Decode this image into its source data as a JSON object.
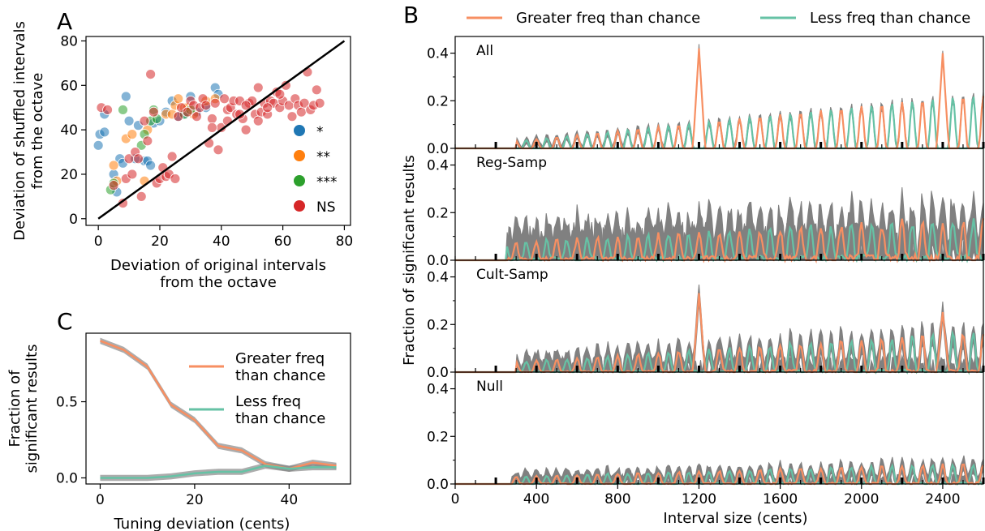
{
  "panels": {
    "A": {
      "letter": "A"
    },
    "B": {
      "letter": "B"
    },
    "C": {
      "letter": "C"
    }
  },
  "colors": {
    "greater": "#f78f62",
    "less": "#66c2a5",
    "band": "#808080",
    "star1": "#1f77b4",
    "star2": "#ff7f0e",
    "star3": "#2ca02c",
    "ns": "#d62728"
  },
  "chart_data": [
    {
      "id": "A",
      "type": "scatter",
      "xlabel_lines": [
        "Deviation of original intervals",
        "from the octave"
      ],
      "ylabel_lines": [
        "Deviation of shuffled intervals",
        "from the octave"
      ],
      "xlim": [
        -4,
        82
      ],
      "ylim": [
        -3,
        82
      ],
      "xticks": [
        0,
        20,
        40,
        60,
        80
      ],
      "yticks": [
        0,
        20,
        40,
        60,
        80
      ],
      "line": [
        [
          0,
          0
        ],
        [
          80,
          80
        ]
      ],
      "legend": [
        {
          "label": "*",
          "color_key": "star1"
        },
        {
          "label": "**",
          "color_key": "star2"
        },
        {
          "label": "***",
          "color_key": "star3"
        },
        {
          "label": "NS",
          "color_key": "ns"
        }
      ],
      "points": {
        "star1": [
          [
            0,
            33
          ],
          [
            0.5,
            38
          ],
          [
            2,
            39
          ],
          [
            2,
            47
          ],
          [
            5,
            20
          ],
          [
            6,
            12
          ],
          [
            7,
            27
          ],
          [
            8,
            25
          ],
          [
            9,
            55
          ],
          [
            10,
            44
          ],
          [
            12,
            27
          ],
          [
            13,
            42
          ],
          [
            15,
            26
          ],
          [
            16,
            26
          ],
          [
            17,
            24
          ],
          [
            18,
            43
          ],
          [
            20,
            44
          ],
          [
            22,
            48
          ],
          [
            24,
            53
          ],
          [
            26,
            46
          ],
          [
            28,
            47
          ],
          [
            30,
            55
          ],
          [
            32,
            48
          ],
          [
            35,
            50
          ],
          [
            38,
            59
          ],
          [
            39,
            56
          ]
        ],
        "star2": [
          [
            5,
            24
          ],
          [
            6,
            17
          ],
          [
            9,
            36
          ],
          [
            11,
            38
          ],
          [
            15,
            17
          ],
          [
            16,
            40
          ],
          [
            22,
            47
          ],
          [
            24,
            47
          ],
          [
            25,
            51
          ],
          [
            26,
            54
          ],
          [
            28,
            50
          ],
          [
            29,
            50
          ],
          [
            31,
            47
          ],
          [
            35,
            53
          ],
          [
            38,
            54
          ]
        ],
        "star3": [
          [
            4,
            13
          ],
          [
            5,
            16
          ],
          [
            8,
            49
          ],
          [
            14,
            33
          ],
          [
            15,
            38
          ],
          [
            17,
            44
          ],
          [
            18,
            49
          ],
          [
            19,
            45
          ],
          [
            28,
            47
          ],
          [
            30,
            49
          ]
        ],
        "ns": [
          [
            1,
            50
          ],
          [
            3,
            49
          ],
          [
            5,
            15
          ],
          [
            8,
            7
          ],
          [
            9,
            18
          ],
          [
            10,
            27
          ],
          [
            11,
            20
          ],
          [
            12,
            30
          ],
          [
            13,
            27
          ],
          [
            14,
            10
          ],
          [
            15,
            44
          ],
          [
            16,
            35
          ],
          [
            17,
            65
          ],
          [
            18,
            48
          ],
          [
            19,
            16
          ],
          [
            20,
            18
          ],
          [
            21,
            23
          ],
          [
            22,
            19
          ],
          [
            23,
            20
          ],
          [
            24,
            28
          ],
          [
            25,
            18
          ],
          [
            26,
            46
          ],
          [
            27,
            50
          ],
          [
            29,
            48
          ],
          [
            30,
            53
          ],
          [
            31,
            51
          ],
          [
            32,
            46
          ],
          [
            33,
            50
          ],
          [
            34,
            54
          ],
          [
            35,
            51
          ],
          [
            36,
            34
          ],
          [
            37,
            45
          ],
          [
            38,
            52
          ],
          [
            39,
            31
          ],
          [
            40,
            41
          ],
          [
            41,
            54
          ],
          [
            42,
            49
          ],
          [
            43,
            50
          ],
          [
            44,
            53
          ],
          [
            45,
            47
          ],
          [
            46,
            53
          ],
          [
            47,
            45
          ],
          [
            48,
            40
          ],
          [
            49,
            52
          ],
          [
            50,
            53
          ],
          [
            51,
            47
          ],
          [
            52,
            59
          ],
          [
            53,
            48
          ],
          [
            54,
            52
          ],
          [
            55,
            47
          ],
          [
            56,
            53
          ],
          [
            57,
            52
          ],
          [
            58,
            57
          ],
          [
            59,
            50
          ],
          [
            60,
            53
          ],
          [
            61,
            60
          ],
          [
            62,
            51
          ],
          [
            63,
            46
          ],
          [
            64,
            54
          ],
          [
            65,
            51
          ],
          [
            66,
            48
          ],
          [
            67,
            52
          ],
          [
            68,
            66
          ],
          [
            69,
            49
          ],
          [
            70,
            51
          ],
          [
            71,
            58
          ],
          [
            72,
            52
          ],
          [
            59,
            56
          ],
          [
            55,
            50
          ],
          [
            48,
            51
          ],
          [
            42,
            44
          ],
          [
            46,
            47
          ],
          [
            52,
            44
          ],
          [
            37,
            41
          ]
        ]
      }
    },
    {
      "id": "B",
      "type": "line",
      "xlabel": "Interval size (cents)",
      "ylabel": "Fraction of significant results",
      "xlim": [
        0,
        2600
      ],
      "ylim": [
        0,
        0.47
      ],
      "xticks": [
        0,
        400,
        800,
        1200,
        1600,
        2000,
        2400
      ],
      "xticklabels": [
        "0",
        "400",
        "800",
        "1200",
        "1600",
        "2000",
        "2400"
      ],
      "yticks": [
        0.0,
        0.2,
        0.4
      ],
      "yticklabels": [
        "0.0",
        "0.2",
        "0.4"
      ],
      "legend": [
        {
          "label": "Greater freq than chance",
          "color_key": "greater"
        },
        {
          "label": "Less freq than chance",
          "color_key": "less"
        }
      ],
      "subpanels": [
        {
          "label": "All",
          "start": 300,
          "amp_lo": 0.03,
          "amp_hi": 0.22,
          "noise": 0.0,
          "band": 0.012
        },
        {
          "label": "Reg-Samp",
          "start": 250,
          "amp_lo": 0.07,
          "amp_hi": 0.16,
          "noise": 0.06,
          "band": 0.09
        },
        {
          "label": "Cult-Samp",
          "start": 300,
          "amp_lo": 0.04,
          "amp_hi": 0.16,
          "noise": 0.03,
          "band": 0.04
        },
        {
          "label": "Null",
          "start": 280,
          "amp_lo": 0.03,
          "amp_hi": 0.08,
          "noise": 0.035,
          "band": 0.025
        }
      ]
    },
    {
      "id": "C",
      "type": "line",
      "xlabel": "Tuning deviation (cents)",
      "ylabel_lines": [
        "Fraction of",
        "significant results"
      ],
      "xlim": [
        -3,
        53
      ],
      "ylim": [
        -0.04,
        0.95
      ],
      "xticks": [
        0,
        20,
        40
      ],
      "yticks": [
        0.0,
        0.5
      ],
      "yticklabels": [
        "0.0",
        "0.5"
      ],
      "x": [
        0,
        5,
        10,
        15,
        20,
        25,
        30,
        35,
        40,
        45,
        50
      ],
      "series": [
        {
          "name_lines": [
            "Greater freq",
            "than chance"
          ],
          "color_key": "greater",
          "values": [
            0.9,
            0.84,
            0.73,
            0.48,
            0.38,
            0.21,
            0.18,
            0.09,
            0.06,
            0.1,
            0.08
          ]
        },
        {
          "name_lines": [
            "Less freq",
            "than chance"
          ],
          "color_key": "less",
          "values": [
            0.0,
            0.0,
            0.0,
            0.01,
            0.03,
            0.04,
            0.04,
            0.08,
            0.06,
            0.07,
            0.07
          ]
        }
      ]
    }
  ]
}
